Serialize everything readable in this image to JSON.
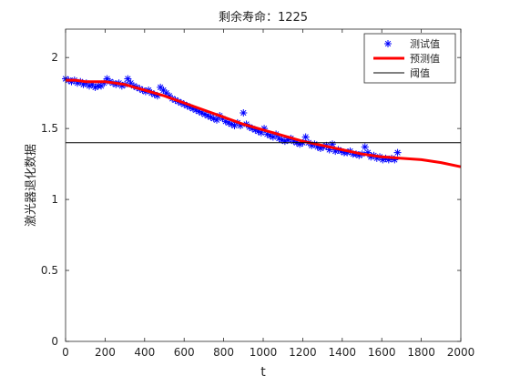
{
  "chart_data": {
    "type": "line",
    "title": "剩余寿命：1225",
    "xlabel": "t",
    "ylabel": "激光器退化数据",
    "xlim": [
      0,
      2000
    ],
    "ylim": [
      0,
      2.2
    ],
    "xticks": [
      "0",
      "200",
      "400",
      "600",
      "800",
      "1000",
      "1200",
      "1400",
      "1600",
      "1800",
      "2000"
    ],
    "yticks": [
      "0",
      "0.5",
      "1",
      "1.5",
      "2"
    ],
    "grid": false,
    "legend_position": "top-right",
    "colors": {
      "test": "#0000ff",
      "pred": "#ff0000",
      "threshold": "#000000"
    },
    "legend": [
      {
        "label": "测试值",
        "marker": "asterisk",
        "color": "#0000ff"
      },
      {
        "label": "预测值",
        "marker": "line-thick",
        "color": "#ff0000"
      },
      {
        "label": "阈值",
        "marker": "line-thin",
        "color": "#000000"
      }
    ],
    "series": [
      {
        "name": "测试值",
        "style": "markers",
        "x": [
          0,
          15,
          30,
          45,
          60,
          75,
          90,
          105,
          120,
          135,
          150,
          165,
          180,
          195,
          210,
          225,
          240,
          255,
          270,
          285,
          300,
          315,
          330,
          345,
          360,
          375,
          390,
          405,
          420,
          435,
          450,
          465,
          480,
          495,
          510,
          525,
          540,
          555,
          570,
          585,
          600,
          615,
          630,
          645,
          660,
          675,
          690,
          705,
          720,
          735,
          750,
          765,
          780,
          795,
          810,
          825,
          840,
          855,
          870,
          885,
          900,
          915,
          930,
          945,
          960,
          975,
          990,
          1005,
          1020,
          1035,
          1050,
          1065,
          1080,
          1095,
          1110,
          1125,
          1140,
          1155,
          1170,
          1185,
          1200,
          1215,
          1230,
          1245,
          1260,
          1275,
          1290,
          1305,
          1320,
          1335,
          1350,
          1365,
          1380,
          1395,
          1410,
          1425,
          1440,
          1455,
          1470,
          1485,
          1500,
          1515,
          1530,
          1545,
          1560,
          1575,
          1590,
          1605,
          1620,
          1635,
          1650,
          1665,
          1680
        ],
        "y": [
          1.85,
          1.84,
          1.83,
          1.84,
          1.82,
          1.83,
          1.81,
          1.82,
          1.8,
          1.81,
          1.79,
          1.8,
          1.8,
          1.82,
          1.85,
          1.83,
          1.82,
          1.81,
          1.82,
          1.8,
          1.81,
          1.85,
          1.82,
          1.8,
          1.79,
          1.78,
          1.77,
          1.76,
          1.77,
          1.75,
          1.74,
          1.73,
          1.79,
          1.77,
          1.75,
          1.73,
          1.71,
          1.7,
          1.69,
          1.68,
          1.67,
          1.66,
          1.65,
          1.64,
          1.63,
          1.62,
          1.61,
          1.6,
          1.59,
          1.58,
          1.57,
          1.56,
          1.59,
          1.57,
          1.55,
          1.54,
          1.53,
          1.52,
          1.54,
          1.52,
          1.61,
          1.53,
          1.51,
          1.5,
          1.49,
          1.48,
          1.47,
          1.5,
          1.46,
          1.45,
          1.44,
          1.46,
          1.43,
          1.42,
          1.41,
          1.42,
          1.43,
          1.41,
          1.4,
          1.39,
          1.4,
          1.44,
          1.4,
          1.38,
          1.39,
          1.37,
          1.36,
          1.37,
          1.38,
          1.35,
          1.39,
          1.34,
          1.35,
          1.34,
          1.33,
          1.33,
          1.34,
          1.32,
          1.32,
          1.31,
          1.32,
          1.37,
          1.33,
          1.3,
          1.31,
          1.29,
          1.3,
          1.28,
          1.29,
          1.28,
          1.29,
          1.28,
          1.33
        ]
      },
      {
        "name": "预测值",
        "style": "line",
        "x": [
          0,
          50,
          100,
          150,
          200,
          250,
          300,
          350,
          400,
          450,
          500,
          600,
          700,
          800,
          900,
          1000,
          1100,
          1200,
          1300,
          1400,
          1500,
          1600,
          1700,
          1800,
          1900,
          2000
        ],
        "y": [
          1.84,
          1.84,
          1.83,
          1.83,
          1.83,
          1.82,
          1.81,
          1.79,
          1.77,
          1.75,
          1.73,
          1.68,
          1.63,
          1.58,
          1.53,
          1.49,
          1.45,
          1.41,
          1.38,
          1.35,
          1.32,
          1.3,
          1.29,
          1.28,
          1.26,
          1.23
        ]
      },
      {
        "name": "阈值",
        "style": "hline",
        "x": [
          0,
          2000
        ],
        "y": [
          1.4,
          1.4
        ]
      }
    ]
  }
}
